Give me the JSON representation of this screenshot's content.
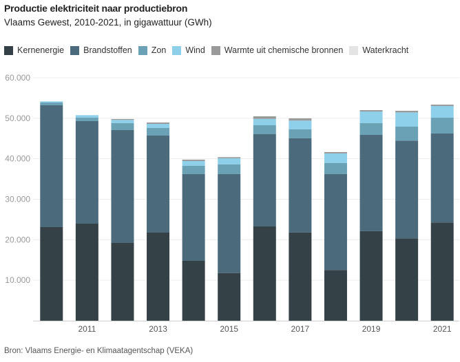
{
  "chart_data": {
    "type": "bar",
    "stacked": true,
    "title": "Productie elektriciteit naar productiebron",
    "subtitle": "Vlaams Gewest, 2010-2021, in gigawattuur (GWh)",
    "xlabel": "",
    "ylabel": "",
    "ylim": [
      0,
      60000
    ],
    "yticks": [
      {
        "value": 10000,
        "label": "10.000"
      },
      {
        "value": 20000,
        "label": "20.000"
      },
      {
        "value": 30000,
        "label": "30.000"
      },
      {
        "value": 40000,
        "label": "40.000"
      },
      {
        "value": 50000,
        "label": "50.000"
      },
      {
        "value": 60000,
        "label": "60.000"
      }
    ],
    "grid": true,
    "legend_position": "top-left",
    "categories": [
      "2010",
      "2011",
      "2012",
      "2013",
      "2014",
      "2015",
      "2016",
      "2017",
      "2018",
      "2019",
      "2020",
      "2021"
    ],
    "xtick_labels": [
      "",
      "2011",
      "",
      "2013",
      "",
      "2015",
      "",
      "2017",
      "",
      "2019",
      "",
      "2021"
    ],
    "series": [
      {
        "name": "Kernenergie",
        "color": "#344248",
        "values": [
          23120,
          23970,
          19210,
          21760,
          14790,
          11780,
          23290,
          21810,
          12530,
          22150,
          20350,
          24250
        ]
      },
      {
        "name": "Brandstoffen",
        "color": "#4b6a7b",
        "values": [
          30080,
          25320,
          27880,
          23960,
          21420,
          24430,
          22770,
          23240,
          23680,
          23740,
          24130,
          21990
        ]
      },
      {
        "name": "Zon",
        "color": "#6ba1b5",
        "values": [
          680,
          850,
          1700,
          1870,
          2040,
          2380,
          2210,
          2210,
          2720,
          2900,
          3450,
          3910
        ]
      },
      {
        "name": "Wind",
        "color": "#8ecfea",
        "values": [
          290,
          630,
          800,
          1020,
          1190,
          1530,
          1580,
          2160,
          2380,
          2880,
          3520,
          2880
        ]
      },
      {
        "name": "Warmte uit chemische bronnen",
        "color": "#9a9a9a",
        "values": [
          0,
          0,
          220,
          340,
          340,
          280,
          630,
          560,
          340,
          340,
          400,
          340
        ]
      },
      {
        "name": "Waterkracht",
        "color": "#e4e4e4",
        "values": [
          2,
          2,
          2,
          2,
          2,
          2,
          2,
          2,
          2,
          2,
          2,
          2
        ]
      }
    ]
  },
  "source": "Bron: Vlaams Energie- en Klimaatagentschap (VEKA)"
}
